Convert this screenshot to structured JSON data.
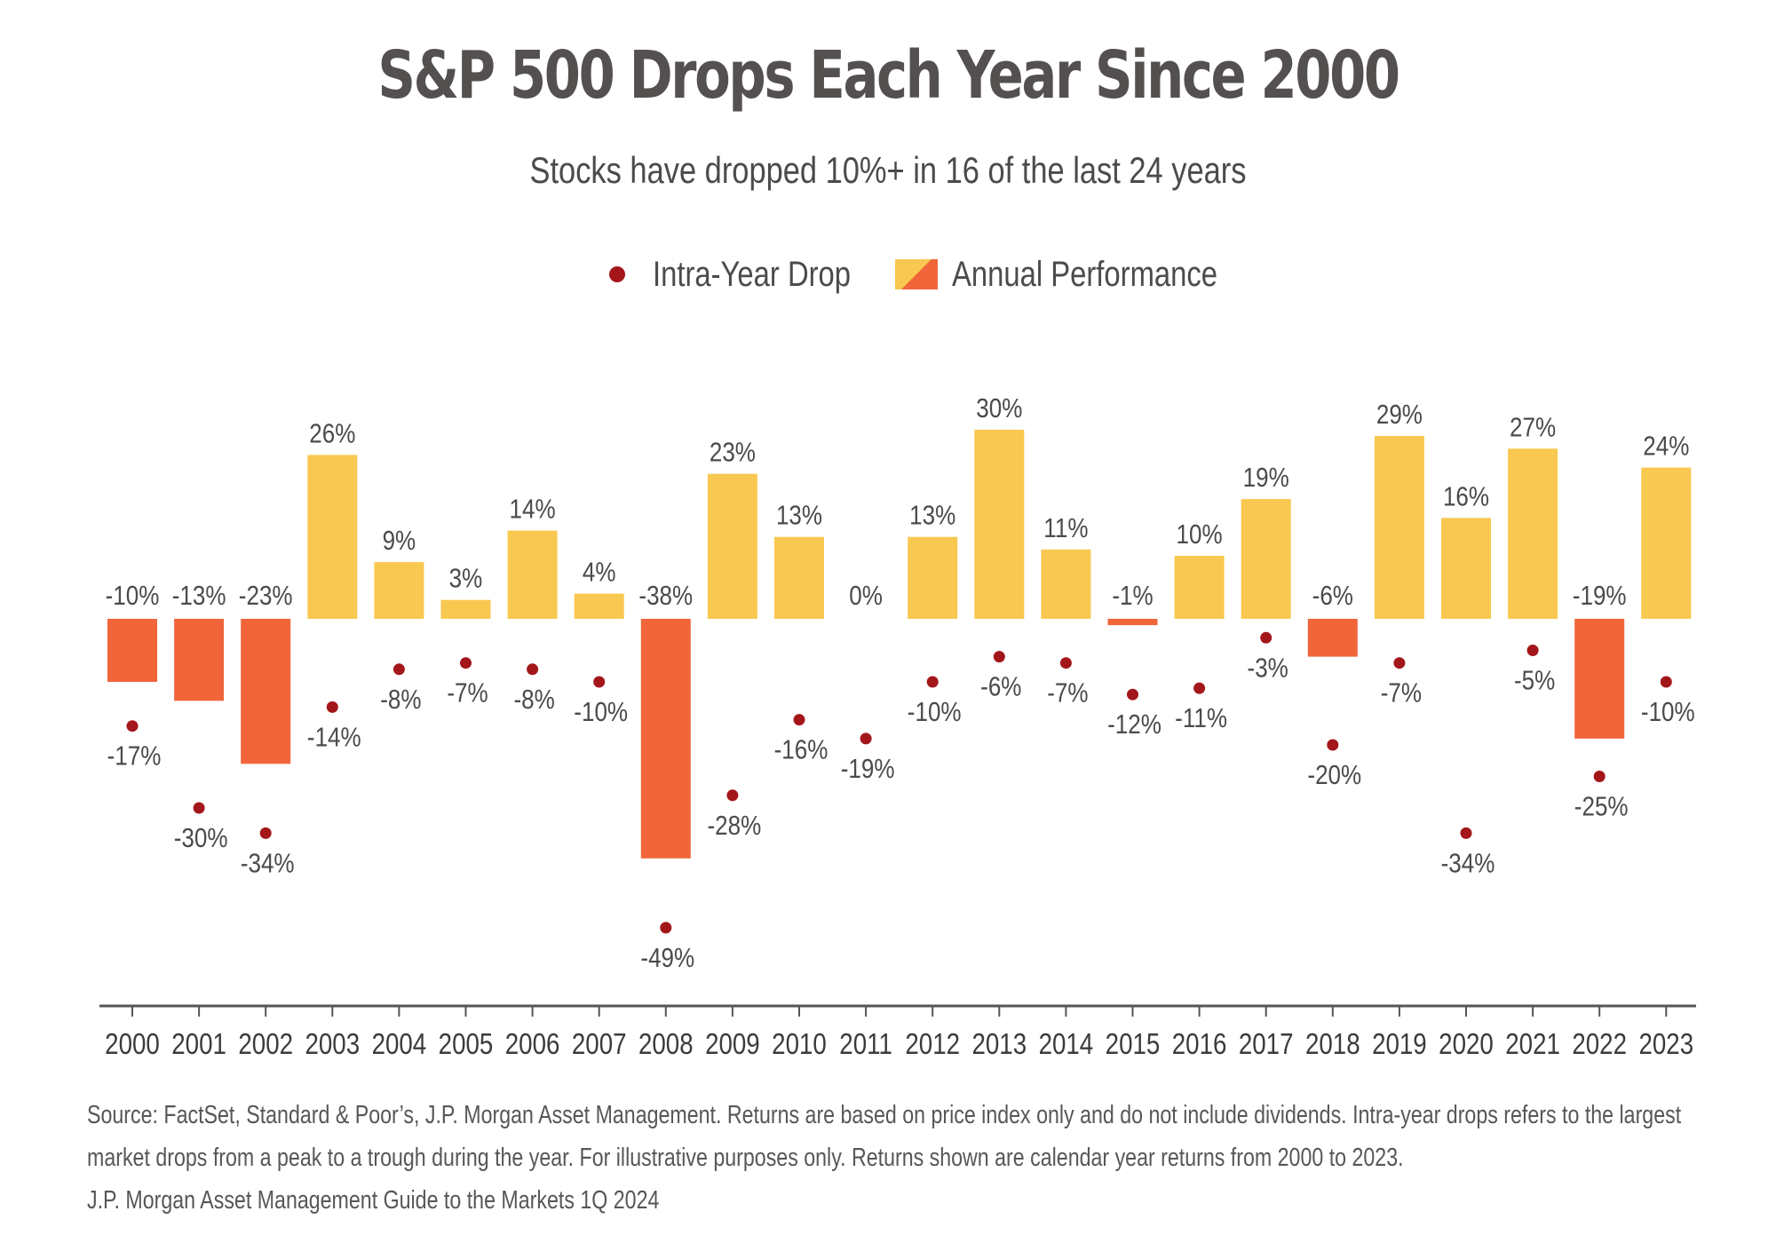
{
  "title": "S&P 500 Drops Each Year Since 2000",
  "subtitle": "Stocks have dropped 10%+ in 16 of the last 24 years",
  "legend": {
    "drop_label": "Intra-Year Drop",
    "performance_label": "Annual Performance"
  },
  "colors": {
    "positive_bar": "#f9c850",
    "negative_bar": "#f0653a",
    "drop_dot": "#a3161a",
    "axis": "#555555",
    "text": "#4d4a4a"
  },
  "chart_data": {
    "type": "bar",
    "categories": [
      "2000",
      "2001",
      "2002",
      "2003",
      "2004",
      "2005",
      "2006",
      "2007",
      "2008",
      "2009",
      "2010",
      "2011",
      "2012",
      "2013",
      "2014",
      "2015",
      "2016",
      "2017",
      "2018",
      "2019",
      "2020",
      "2021",
      "2022",
      "2023"
    ],
    "series": [
      {
        "name": "Annual Performance",
        "type": "bar",
        "values": [
          -10,
          -13,
          -23,
          26,
          9,
          3,
          14,
          4,
          -38,
          23,
          13,
          0,
          13,
          30,
          11,
          -1,
          10,
          19,
          -6,
          29,
          16,
          27,
          -19,
          24
        ],
        "labels": [
          "-10%",
          "-13%",
          "-23%",
          "26%",
          "9%",
          "3%",
          "14%",
          "4%",
          "-38%",
          "23%",
          "13%",
          "0%",
          "13%",
          "30%",
          "11%",
          "-1%",
          "10%",
          "19%",
          "-6%",
          "29%",
          "16%",
          "27%",
          "-19%",
          "24%"
        ]
      },
      {
        "name": "Intra-Year Drop",
        "type": "scatter",
        "values": [
          -17,
          -30,
          -34,
          -14,
          -8,
          -7,
          -8,
          -10,
          -49,
          -28,
          -16,
          -19,
          -10,
          -6,
          -7,
          -12,
          -11,
          -3,
          -20,
          -7,
          -34,
          -5,
          -25,
          -10
        ],
        "labels": [
          "-17%",
          "-30%",
          "-34%",
          "-14%",
          "-8%",
          "-7%",
          "-8%",
          "-10%",
          "-49%",
          "-28%",
          "-16%",
          "-19%",
          "-10%",
          "-6%",
          "-7%",
          "-12%",
          "-11%",
          "-3%",
          "-20%",
          "-7%",
          "-34%",
          "-5%",
          "-25%",
          "-10%"
        ]
      }
    ],
    "ylim": [
      -60,
      35
    ],
    "grid": false,
    "legend_position": "top-center"
  },
  "footnotes": [
    "Source: FactSet, Standard & Poor’s, J.P. Morgan Asset Management. Returns are based on price index only and do not include dividends. Intra-year drops refers to the largest",
    "market drops from a peak to a trough during the year. For illustrative purposes only. Returns shown are calendar year returns from 2000 to 2023.",
    "J.P. Morgan Asset Management Guide to the Markets 1Q 2024"
  ]
}
